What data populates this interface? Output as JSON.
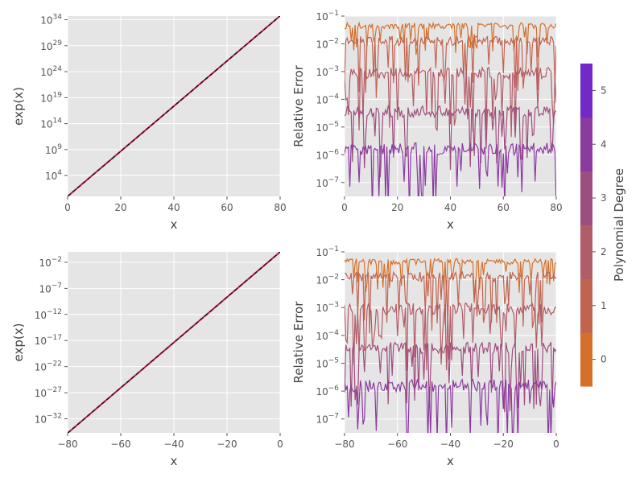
{
  "colors": {
    "panel_bg": "#e5e5e5",
    "grid": "#ffffff",
    "text": "#555555",
    "label": "#444444",
    "exp_line": "#c2185b",
    "exp_dash": "#111111"
  },
  "colorbar": {
    "label": "Polynomial Degree",
    "ticks": [
      "0",
      "1",
      "2",
      "3",
      "4",
      "5"
    ],
    "colors": [
      "#d4702a",
      "#c06450",
      "#b15c68",
      "#9e4e7e",
      "#8b3aa0",
      "#7328c8"
    ]
  },
  "chart_data": [
    {
      "type": "line",
      "id": "exp_positive",
      "xlabel": "x",
      "ylabel": "exp(x)",
      "xlim": [
        0,
        80
      ],
      "xticks": [
        0,
        20,
        40,
        60,
        80
      ],
      "xtick_labels": [
        "0",
        "20",
        "40",
        "60",
        "80"
      ],
      "ylog": true,
      "ylim_exp": [
        0,
        34.7
      ],
      "ytick_exps": [
        4,
        9,
        14,
        19,
        24,
        29,
        34
      ],
      "ytick_labels": [
        "4",
        "9",
        "14",
        "19",
        "24",
        "29",
        "34"
      ],
      "series": [
        {
          "x": [
            0,
            80
          ],
          "y_log10": [
            0,
            34.74
          ]
        }
      ]
    },
    {
      "type": "line",
      "id": "error_positive",
      "xlabel": "x",
      "ylabel": "Relative Error",
      "xlim": [
        0,
        80
      ],
      "xticks": [
        0,
        20,
        40,
        60,
        80
      ],
      "xtick_labels": [
        "0",
        "20",
        "40",
        "60",
        "80"
      ],
      "ylog": true,
      "ylim_exp": [
        -7.5,
        -1
      ],
      "ytick_exps": [
        -7,
        -6,
        -5,
        -4,
        -3,
        -2,
        -1
      ],
      "ytick_labels": [
        "−7",
        "−6",
        "−5",
        "−4",
        "−3",
        "−2",
        "−1"
      ],
      "series": [
        {
          "degree": 0,
          "base_log": -1.35,
          "spread": 0.35
        },
        {
          "degree": 1,
          "base_log": -1.9,
          "spread": 0.6
        },
        {
          "degree": 2,
          "base_log": -3.05,
          "spread": 0.7
        },
        {
          "degree": 3,
          "base_log": -4.45,
          "spread": 0.7
        },
        {
          "degree": 4,
          "base_log": -5.8,
          "spread": 0.75
        }
      ]
    },
    {
      "type": "line",
      "id": "exp_negative",
      "xlabel": "x",
      "ylabel": "exp(x)",
      "xlim": [
        -80,
        0
      ],
      "xticks": [
        -80,
        -60,
        -40,
        -20,
        0
      ],
      "xtick_labels": [
        "−80",
        "−60",
        "−40",
        "−20",
        "0"
      ],
      "ylog": true,
      "ylim_exp": [
        -34.7,
        0
      ],
      "ytick_exps": [
        -2,
        -7,
        -12,
        -17,
        -22,
        -27,
        -32
      ],
      "ytick_labels": [
        "−2",
        "−7",
        "−12",
        "−17",
        "−22",
        "−27",
        "−32"
      ],
      "series": [
        {
          "x": [
            -80,
            0
          ],
          "y_log10": [
            -34.74,
            0
          ]
        }
      ]
    },
    {
      "type": "line",
      "id": "error_negative",
      "xlabel": "x",
      "ylabel": "Relative Error",
      "xlim": [
        -80,
        0
      ],
      "xticks": [
        -80,
        -60,
        -40,
        -20,
        0
      ],
      "xtick_labels": [
        "−80",
        "−60",
        "−40",
        "−20",
        "0"
      ],
      "ylog": true,
      "ylim_exp": [
        -7.5,
        -1
      ],
      "ytick_exps": [
        -7,
        -6,
        -5,
        -4,
        -3,
        -2,
        -1
      ],
      "ytick_labels": [
        "−7",
        "−6",
        "−5",
        "−4",
        "−3",
        "−2",
        "−1"
      ],
      "series": [
        {
          "degree": 0,
          "base_log": -1.35,
          "spread": 0.35
        },
        {
          "degree": 1,
          "base_log": -1.9,
          "spread": 0.6
        },
        {
          "degree": 2,
          "base_log": -3.05,
          "spread": 0.7
        },
        {
          "degree": 3,
          "base_log": -4.45,
          "spread": 0.7
        },
        {
          "degree": 4,
          "base_log": -5.8,
          "spread": 0.75
        }
      ]
    }
  ]
}
